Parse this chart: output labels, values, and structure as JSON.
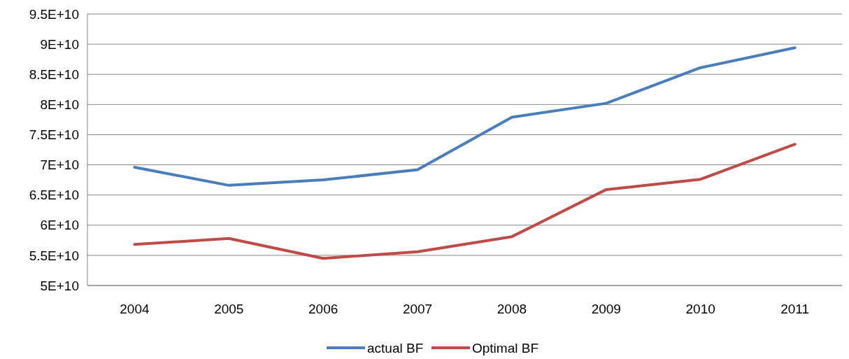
{
  "chart_data": {
    "type": "line",
    "categories": [
      "2004",
      "2005",
      "2006",
      "2007",
      "2008",
      "2009",
      "2010",
      "2011"
    ],
    "series": [
      {
        "name": "actual BF",
        "color": "#4a7ebb",
        "values": [
          69600000000,
          66600000000,
          67500000000,
          69200000000,
          77900000000,
          80200000000,
          86100000000,
          89400000000
        ]
      },
      {
        "name": "Optimal BF",
        "color": "#be4b48",
        "values": [
          56800000000,
          57800000000,
          54500000000,
          55600000000,
          58100000000,
          65900000000,
          67600000000,
          73400000000
        ]
      }
    ],
    "ylim": [
      50000000000,
      95000000000
    ],
    "yticks": [
      {
        "value": 50000000000,
        "label": "5E+10"
      },
      {
        "value": 55000000000,
        "label": "5.5E+10"
      },
      {
        "value": 60000000000,
        "label": "6E+10"
      },
      {
        "value": 65000000000,
        "label": "6.5E+10"
      },
      {
        "value": 70000000000,
        "label": "7E+10"
      },
      {
        "value": 75000000000,
        "label": "7.5E+10"
      },
      {
        "value": 80000000000,
        "label": "8E+10"
      },
      {
        "value": 85000000000,
        "label": "8.5E+10"
      },
      {
        "value": 90000000000,
        "label": "9E+10"
      },
      {
        "value": 95000000000,
        "label": "9.5E+10"
      }
    ],
    "grid": "y",
    "legend": "bottom",
    "marker": "none",
    "line_style": "solid"
  }
}
